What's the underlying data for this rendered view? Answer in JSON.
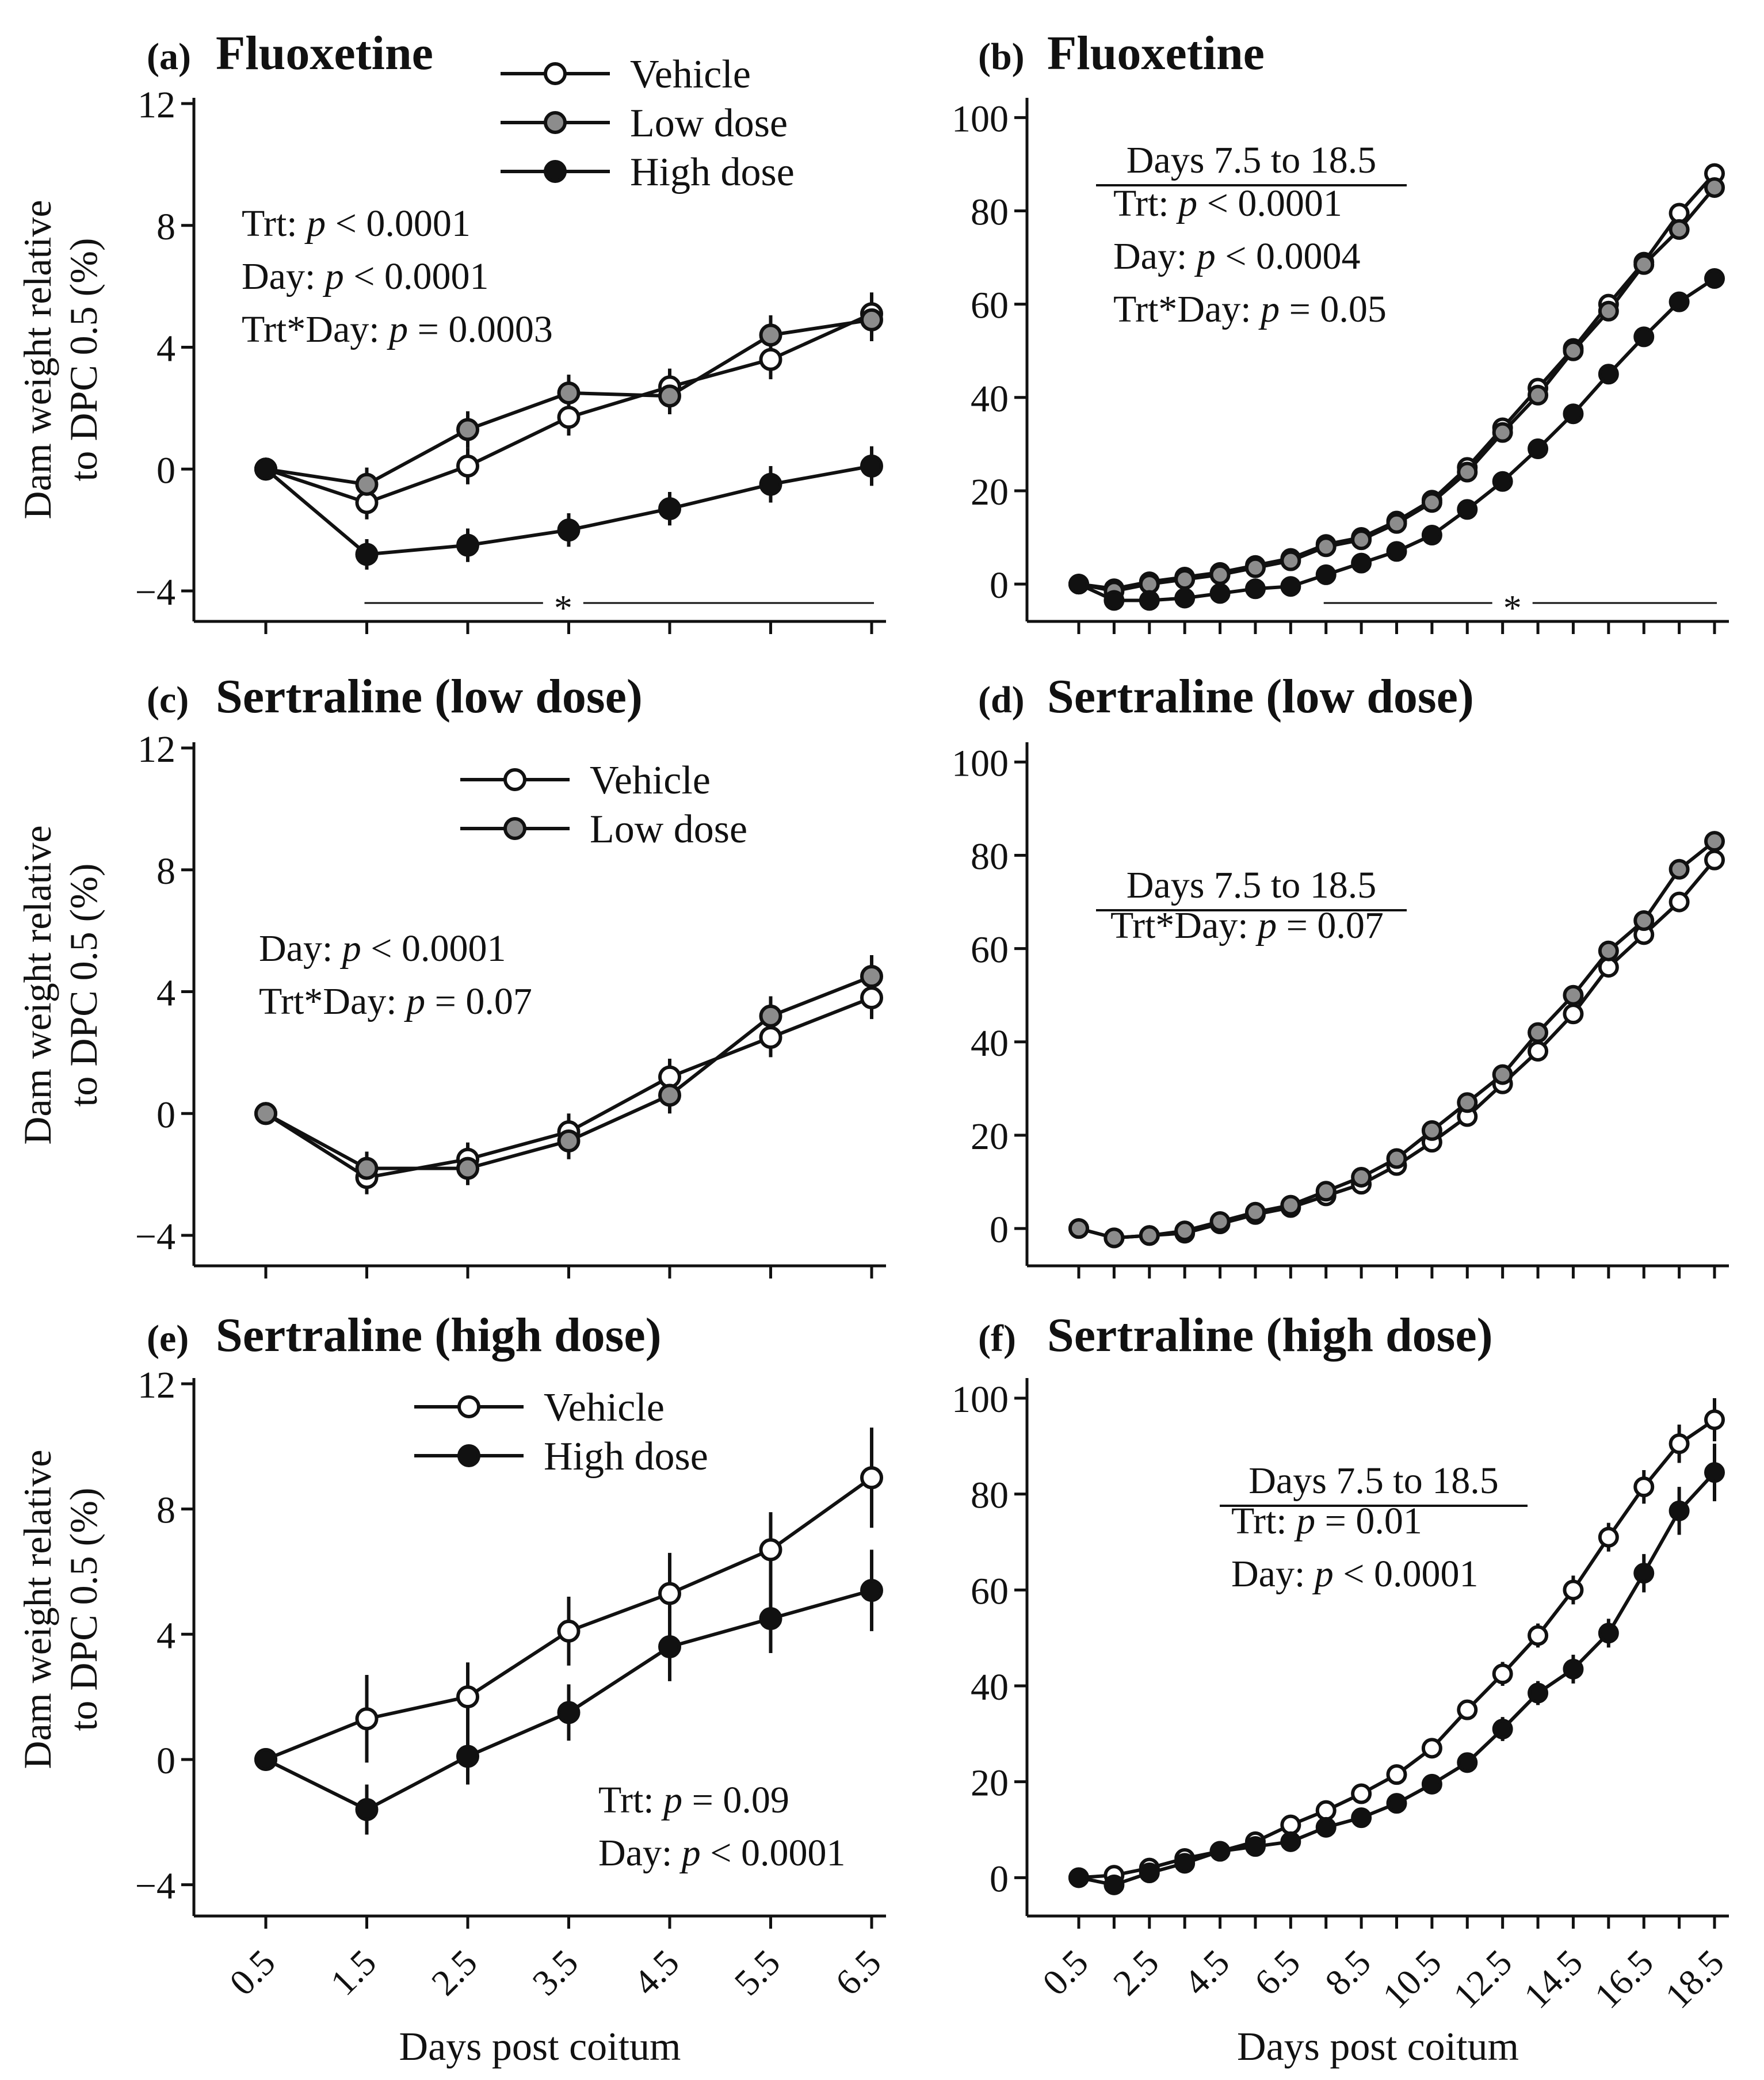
{
  "figure": {
    "y_axis_label_line1": "Dam weight relative",
    "y_axis_label_line2": "to DPC 0.5 (%)",
    "x_axis_label": "Days post coitum"
  },
  "series_style": {
    "Vehicle": {
      "fill": "#ffffff"
    },
    "Low dose": {
      "fill": "#8c8c8c"
    },
    "High dose": {
      "fill": "#111111"
    }
  },
  "chart_data": [
    {
      "id": "a",
      "type": "line",
      "tag": "(a)",
      "title": "Fluoxetine",
      "xlabel": "",
      "ylabel": "Dam weight relative to DPC 0.5 (%)",
      "x": [
        0.5,
        1.5,
        2.5,
        3.5,
        4.5,
        5.5,
        6.5
      ],
      "x_ticks": [
        "0.5",
        "1.5",
        "2.5",
        "3.5",
        "4.5",
        "5.5",
        "6.5"
      ],
      "ylim": [
        -5.0,
        12
      ],
      "y_ticks": [
        -4,
        0,
        4,
        8,
        12
      ],
      "y_tick_labels": [
        "−4",
        "0",
        "4",
        "8",
        "12"
      ],
      "legend": [
        "Vehicle",
        "Low dose",
        "High dose"
      ],
      "legend_position": "top-center",
      "series": [
        {
          "name": "Vehicle",
          "values": [
            0,
            -1.1,
            0.1,
            1.7,
            2.7,
            3.6,
            5.1
          ],
          "errors": [
            0,
            0.55,
            0.6,
            0.6,
            0.6,
            0.65,
            0.7
          ]
        },
        {
          "name": "Low dose",
          "values": [
            0,
            -0.5,
            1.3,
            2.5,
            2.4,
            4.4,
            4.9
          ],
          "errors": [
            0,
            0.55,
            0.6,
            0.6,
            0.6,
            0.65,
            0.7
          ]
        },
        {
          "name": "High dose",
          "values": [
            0,
            -2.8,
            -2.5,
            -2.0,
            -1.3,
            -0.5,
            0.1
          ],
          "errors": [
            0,
            0.5,
            0.55,
            0.55,
            0.55,
            0.6,
            0.65
          ]
        }
      ],
      "annotations": [
        "Trt: p < 0.0001",
        "Day: p < 0.0001",
        "Trt*Day: p = 0.0003"
      ],
      "significance": {
        "label": "*",
        "x_range": [
          1.5,
          6.5
        ]
      }
    },
    {
      "id": "b",
      "type": "line",
      "tag": "(b)",
      "title": "Fluoxetine",
      "xlabel": "",
      "ylabel": "",
      "x": [
        0.5,
        1.5,
        2.5,
        3.5,
        4.5,
        5.5,
        6.5,
        7.5,
        8.5,
        9.5,
        10.5,
        11.5,
        12.5,
        13.5,
        14.5,
        15.5,
        16.5,
        17.5,
        18.5
      ],
      "x_ticks": [
        "0.5",
        "2.5",
        "4.5",
        "6.5",
        "8.5",
        "10.5",
        "12.5",
        "14.5",
        "16.5",
        "18.5"
      ],
      "ylim": [
        -8,
        103
      ],
      "y_ticks": [
        0,
        20,
        40,
        60,
        80,
        100
      ],
      "y_tick_labels": [
        "0",
        "20",
        "40",
        "60",
        "80",
        "100"
      ],
      "series": [
        {
          "name": "Vehicle",
          "values": [
            0,
            -1,
            0.5,
            1.5,
            2.5,
            4,
            5.5,
            8.5,
            10,
            13.5,
            18,
            25,
            33.5,
            42,
            50.5,
            60,
            69,
            79.5,
            88
          ]
        },
        {
          "name": "Low dose",
          "values": [
            0,
            -1.5,
            0,
            1,
            2,
            3.5,
            5,
            8,
            9.5,
            13,
            17.5,
            24,
            32.5,
            40.5,
            50,
            58.5,
            68.5,
            76,
            85
          ]
        },
        {
          "name": "High dose",
          "values": [
            0,
            -3.5,
            -3.5,
            -3,
            -2,
            -1,
            -0.5,
            2,
            4.5,
            7,
            10.5,
            16,
            22,
            29,
            36.5,
            45,
            53,
            60.5,
            65.5
          ]
        }
      ],
      "annotation_header": "Days 7.5 to 18.5",
      "annotations": [
        "Trt: p < 0.0001",
        "Day: p < 0.0004",
        "Trt*Day: p = 0.05"
      ],
      "significance": {
        "label": "*",
        "x_range": [
          7.5,
          18.5
        ]
      }
    },
    {
      "id": "c",
      "type": "line",
      "tag": "(c)",
      "title": "Sertraline (low dose)",
      "xlabel": "",
      "ylabel": "Dam weight relative to DPC 0.5 (%)",
      "x": [
        0.5,
        1.5,
        2.5,
        3.5,
        4.5,
        5.5,
        6.5
      ],
      "x_ticks": [
        "0.5",
        "1.5",
        "2.5",
        "3.5",
        "4.5",
        "5.5",
        "6.5"
      ],
      "ylim": [
        -5.0,
        12
      ],
      "y_ticks": [
        -4,
        0,
        4,
        8,
        12
      ],
      "y_tick_labels": [
        "−4",
        "0",
        "4",
        "8",
        "12"
      ],
      "legend": [
        "Vehicle",
        "Low dose"
      ],
      "legend_position": "top-center",
      "series": [
        {
          "name": "Vehicle",
          "values": [
            0,
            -2.1,
            -1.5,
            -0.6,
            1.2,
            2.5,
            3.8
          ],
          "errors": [
            0,
            0.55,
            0.55,
            0.6,
            0.6,
            0.65,
            0.7
          ]
        },
        {
          "name": "Low dose",
          "values": [
            0,
            -1.8,
            -1.8,
            -0.9,
            0.6,
            3.2,
            4.5
          ],
          "errors": [
            0,
            0.55,
            0.55,
            0.6,
            0.6,
            0.65,
            0.7
          ]
        }
      ],
      "annotations": [
        "Day: p < 0.0001",
        "Trt*Day: p = 0.07"
      ]
    },
    {
      "id": "d",
      "type": "line",
      "tag": "(d)",
      "title": "Sertraline (low dose)",
      "xlabel": "",
      "ylabel": "",
      "x": [
        0.5,
        1.5,
        2.5,
        3.5,
        4.5,
        5.5,
        6.5,
        7.5,
        8.5,
        9.5,
        10.5,
        11.5,
        12.5,
        13.5,
        14.5,
        15.5,
        16.5,
        17.5,
        18.5
      ],
      "x_ticks": [
        "0.5",
        "2.5",
        "4.5",
        "6.5",
        "8.5",
        "10.5",
        "12.5",
        "14.5",
        "16.5",
        "18.5"
      ],
      "ylim": [
        -8,
        103
      ],
      "y_ticks": [
        0,
        20,
        40,
        60,
        80,
        100
      ],
      "y_tick_labels": [
        "0",
        "20",
        "40",
        "60",
        "80",
        "100"
      ],
      "series": [
        {
          "name": "Vehicle",
          "values": [
            0,
            -2,
            -1.5,
            -1,
            1,
            3,
            4.5,
            7,
            9.5,
            13.5,
            18.5,
            24,
            31,
            38,
            46,
            56,
            63,
            70,
            79
          ]
        },
        {
          "name": "Low dose",
          "values": [
            0,
            -2,
            -1.5,
            -0.5,
            1.5,
            3.5,
            5,
            8,
            11,
            15,
            21,
            27,
            33,
            42,
            50,
            59.5,
            66,
            77,
            83
          ]
        }
      ],
      "annotation_header": "Days 7.5 to 18.5",
      "annotations": [
        "Trt*Day: p = 0.07"
      ]
    },
    {
      "id": "e",
      "type": "line",
      "tag": "(e)",
      "title": "Sertraline (high dose)",
      "xlabel": "Days post coitum",
      "ylabel": "Dam weight relative to DPC 0.5 (%)",
      "x": [
        0.5,
        1.5,
        2.5,
        3.5,
        4.5,
        5.5,
        6.5
      ],
      "x_ticks": [
        "0.5",
        "1.5",
        "2.5",
        "3.5",
        "4.5",
        "5.5",
        "6.5"
      ],
      "ylim": [
        -5.0,
        12
      ],
      "y_ticks": [
        -4,
        0,
        4,
        8,
        12
      ],
      "y_tick_labels": [
        "−4",
        "0",
        "4",
        "8",
        "12"
      ],
      "legend": [
        "Vehicle",
        "High dose"
      ],
      "legend_position": "top-center",
      "series": [
        {
          "name": "Vehicle",
          "values": [
            0,
            1.3,
            2.0,
            4.1,
            5.3,
            6.7,
            9.0
          ],
          "errors": [
            0,
            1.4,
            1.1,
            1.1,
            1.3,
            1.2,
            1.6
          ]
        },
        {
          "name": "High dose",
          "values": [
            0,
            -1.6,
            0.1,
            1.5,
            3.6,
            4.5,
            5.4
          ],
          "errors": [
            0,
            0.8,
            0.9,
            0.9,
            1.1,
            1.1,
            1.3
          ]
        }
      ],
      "annotations": [
        "Trt: p = 0.09",
        "Day: p < 0.0001"
      ]
    },
    {
      "id": "f",
      "type": "line",
      "tag": "(f)",
      "title": "Sertraline (high dose)",
      "xlabel": "Days post coitum",
      "ylabel": "",
      "x": [
        0.5,
        1.5,
        2.5,
        3.5,
        4.5,
        5.5,
        6.5,
        7.5,
        8.5,
        9.5,
        10.5,
        11.5,
        12.5,
        13.5,
        14.5,
        15.5,
        16.5,
        17.5,
        18.5
      ],
      "x_ticks": [
        "0.5",
        "2.5",
        "4.5",
        "6.5",
        "8.5",
        "10.5",
        "12.5",
        "14.5",
        "16.5",
        "18.5"
      ],
      "ylim": [
        -8,
        103
      ],
      "y_ticks": [
        0,
        20,
        40,
        60,
        80,
        100
      ],
      "y_tick_labels": [
        "0",
        "20",
        "40",
        "60",
        "80",
        "100"
      ],
      "series": [
        {
          "name": "Vehicle",
          "values": [
            0,
            0.5,
            2,
            4,
            5.5,
            7.5,
            11,
            14,
            17.5,
            21.5,
            27,
            35,
            42.5,
            50.5,
            60,
            71,
            81.5,
            90.5,
            95.5
          ],
          "errors": [
            0,
            0,
            0,
            0,
            0,
            0,
            0,
            1,
            1.5,
            1.5,
            2,
            2,
            2.5,
            2.5,
            3,
            3,
            3.5,
            4,
            4.5
          ]
        },
        {
          "name": "High dose",
          "values": [
            0,
            -1.5,
            1,
            3,
            5.5,
            6.5,
            7.5,
            10.5,
            12.5,
            15.5,
            19.5,
            24,
            31,
            38.5,
            43.5,
            51,
            63.5,
            76.5,
            84.5
          ],
          "errors": [
            0,
            0,
            0,
            0,
            0,
            0,
            0,
            1,
            1.5,
            1.5,
            2,
            2,
            2.5,
            2.5,
            3,
            3,
            4,
            5,
            6
          ]
        }
      ],
      "annotation_header": "Days 7.5 to 18.5",
      "annotations": [
        "Trt: p = 0.01",
        "Day: p < 0.0001"
      ]
    }
  ]
}
